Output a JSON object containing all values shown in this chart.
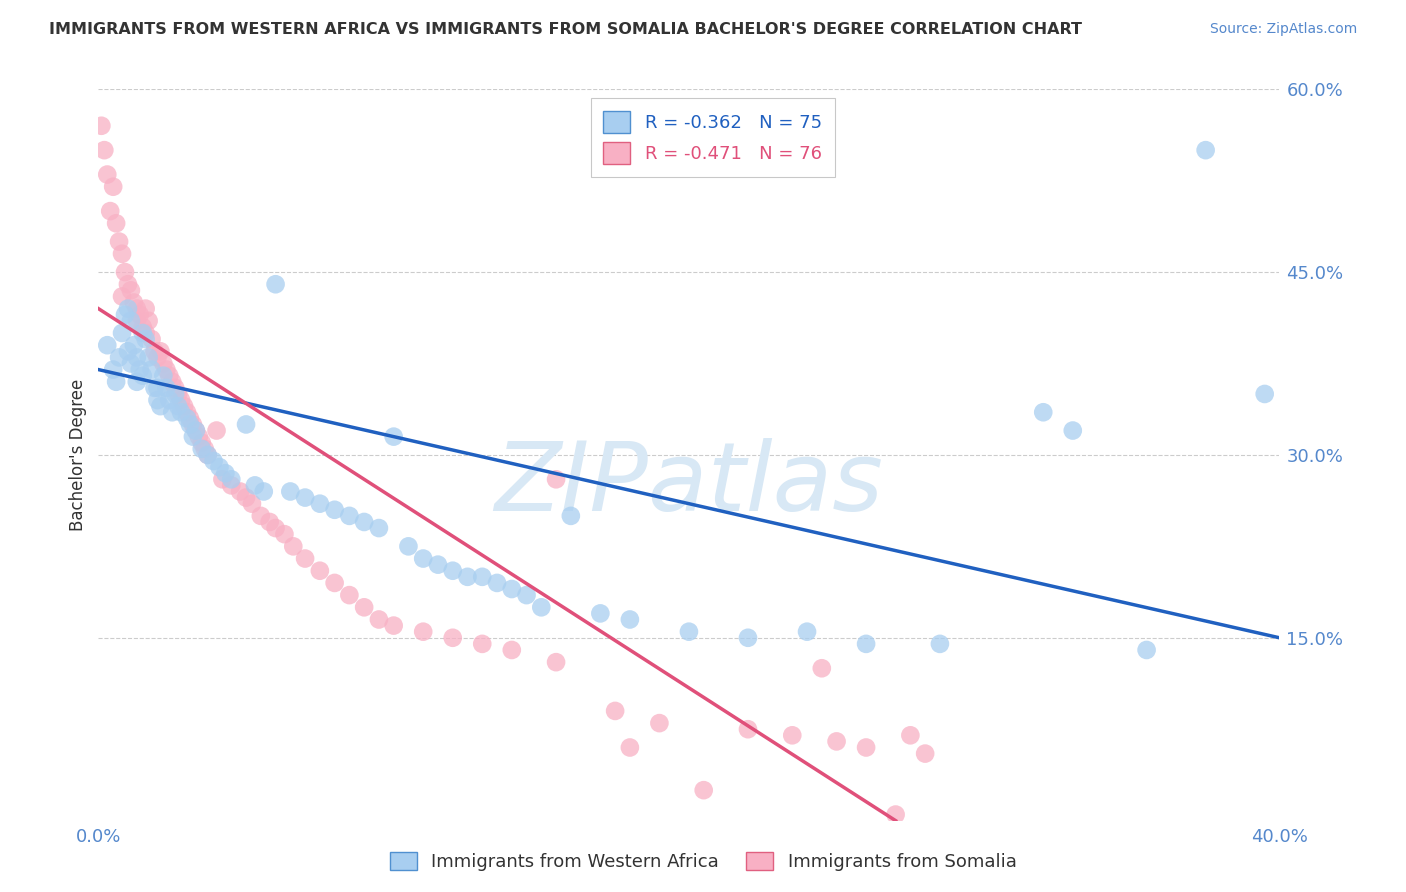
{
  "title": "IMMIGRANTS FROM WESTERN AFRICA VS IMMIGRANTS FROM SOMALIA BACHELOR'S DEGREE CORRELATION CHART",
  "source": "Source: ZipAtlas.com",
  "ylabel": "Bachelor's Degree",
  "xlim": [
    0.0,
    40.0
  ],
  "ylim": [
    0.0,
    60.0
  ],
  "yticks": [
    15.0,
    30.0,
    45.0,
    60.0
  ],
  "xticks_show": [
    0.0,
    40.0
  ],
  "xticks_minor": [
    10.0,
    20.0,
    30.0
  ],
  "series1_label": "Immigrants from Western Africa",
  "series1_R": -0.362,
  "series1_N": 75,
  "series1_color": "#A8CEF0",
  "series1_edge_color": "#5090D0",
  "series1_line_color": "#2060C0",
  "series2_label": "Immigrants from Somalia",
  "series2_R": -0.471,
  "series2_N": 76,
  "series2_color": "#F8B0C4",
  "series2_edge_color": "#E06080",
  "series2_line_color": "#E0507A",
  "background_color": "#FFFFFF",
  "grid_color": "#CCCCCC",
  "title_color": "#333333",
  "axis_color": "#5588CC",
  "watermark": "ZIPatlas",
  "watermark_color": "#D8E8F5",
  "line1_x0": 0.0,
  "line1_y0": 37.0,
  "line1_x1": 40.0,
  "line1_y1": 15.0,
  "line2_x0": 0.0,
  "line2_y0": 42.0,
  "line2_x1": 27.0,
  "line2_y1": 0.0,
  "series1_x": [
    0.3,
    0.5,
    0.6,
    0.7,
    0.8,
    0.9,
    1.0,
    1.0,
    1.1,
    1.1,
    1.2,
    1.3,
    1.3,
    1.4,
    1.5,
    1.5,
    1.6,
    1.7,
    1.8,
    1.9,
    2.0,
    2.0,
    2.1,
    2.2,
    2.3,
    2.4,
    2.5,
    2.6,
    2.7,
    2.8,
    3.0,
    3.1,
    3.2,
    3.3,
    3.5,
    3.7,
    3.9,
    4.1,
    4.3,
    4.5,
    5.0,
    5.3,
    5.6,
    6.0,
    6.5,
    7.0,
    7.5,
    8.0,
    8.5,
    9.0,
    9.5,
    10.0,
    10.5,
    11.0,
    11.5,
    12.0,
    12.5,
    13.0,
    13.5,
    14.0,
    14.5,
    15.0,
    16.0,
    17.0,
    18.0,
    20.0,
    22.0,
    24.0,
    26.0,
    28.5,
    32.0,
    33.0,
    35.5,
    37.5,
    39.5
  ],
  "series1_y": [
    39.0,
    37.0,
    36.0,
    38.0,
    40.0,
    41.5,
    42.0,
    38.5,
    41.0,
    37.5,
    39.0,
    38.0,
    36.0,
    37.0,
    40.0,
    36.5,
    39.5,
    38.0,
    37.0,
    35.5,
    35.5,
    34.5,
    34.0,
    36.5,
    35.5,
    34.5,
    33.5,
    35.0,
    34.0,
    33.5,
    33.0,
    32.5,
    31.5,
    32.0,
    30.5,
    30.0,
    29.5,
    29.0,
    28.5,
    28.0,
    32.5,
    27.5,
    27.0,
    44.0,
    27.0,
    26.5,
    26.0,
    25.5,
    25.0,
    24.5,
    24.0,
    31.5,
    22.5,
    21.5,
    21.0,
    20.5,
    20.0,
    20.0,
    19.5,
    19.0,
    18.5,
    17.5,
    25.0,
    17.0,
    16.5,
    15.5,
    15.0,
    15.5,
    14.5,
    14.5,
    33.5,
    32.0,
    14.0,
    55.0,
    35.0
  ],
  "series2_x": [
    0.1,
    0.2,
    0.3,
    0.4,
    0.5,
    0.6,
    0.7,
    0.8,
    0.8,
    0.9,
    1.0,
    1.1,
    1.2,
    1.3,
    1.3,
    1.4,
    1.5,
    1.6,
    1.6,
    1.7,
    1.8,
    1.9,
    2.0,
    2.1,
    2.2,
    2.3,
    2.4,
    2.5,
    2.6,
    2.7,
    2.8,
    2.9,
    3.0,
    3.1,
    3.2,
    3.3,
    3.4,
    3.5,
    3.6,
    3.7,
    4.0,
    4.2,
    4.5,
    4.8,
    5.0,
    5.2,
    5.5,
    5.8,
    6.0,
    6.3,
    6.6,
    7.0,
    7.5,
    8.0,
    8.5,
    9.0,
    9.5,
    10.0,
    11.0,
    12.0,
    13.0,
    14.0,
    15.5,
    15.5,
    17.5,
    18.0,
    19.0,
    20.5,
    22.0,
    23.5,
    24.5,
    25.0,
    26.0,
    27.0,
    27.5,
    28.0
  ],
  "series2_y": [
    57.0,
    55.0,
    53.0,
    50.0,
    52.0,
    49.0,
    47.5,
    46.5,
    43.0,
    45.0,
    44.0,
    43.5,
    42.5,
    42.0,
    41.0,
    41.5,
    40.5,
    42.0,
    40.0,
    41.0,
    39.5,
    38.5,
    38.0,
    38.5,
    37.5,
    37.0,
    36.5,
    36.0,
    35.5,
    35.0,
    34.5,
    34.0,
    33.5,
    33.0,
    32.5,
    32.0,
    31.5,
    31.0,
    30.5,
    30.0,
    32.0,
    28.0,
    27.5,
    27.0,
    26.5,
    26.0,
    25.0,
    24.5,
    24.0,
    23.5,
    22.5,
    21.5,
    20.5,
    19.5,
    18.5,
    17.5,
    16.5,
    16.0,
    15.5,
    15.0,
    14.5,
    14.0,
    28.0,
    13.0,
    9.0,
    6.0,
    8.0,
    2.5,
    7.5,
    7.0,
    12.5,
    6.5,
    6.0,
    0.5,
    7.0,
    5.5
  ]
}
